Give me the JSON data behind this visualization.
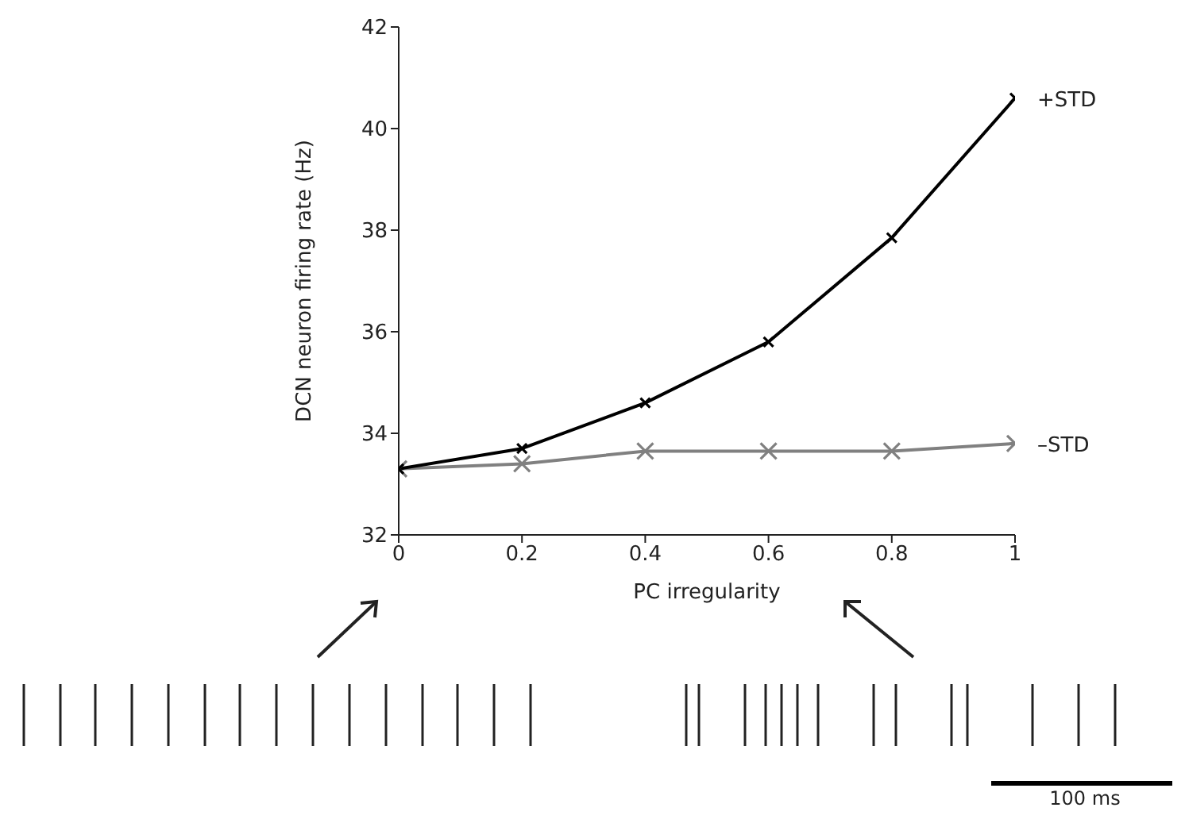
{
  "chart_data": {
    "type": "line",
    "xlabel": "PC irregularity",
    "ylabel": "DCN neuron firing rate (Hz)",
    "x": [
      0,
      0.2,
      0.4,
      0.6,
      0.8,
      1
    ],
    "series": [
      {
        "name": "+STD",
        "color": "#000000",
        "values": [
          33.3,
          33.7,
          34.6,
          35.8,
          37.85,
          40.6
        ]
      },
      {
        "name": "–STD",
        "color": "#808080",
        "values": [
          33.3,
          33.4,
          33.65,
          33.65,
          33.65,
          33.8
        ]
      }
    ],
    "xlim": [
      0,
      1
    ],
    "xticks": [
      0,
      0.2,
      0.4,
      0.6,
      0.8,
      1
    ],
    "ylim": [
      32,
      42
    ],
    "yticks": [
      32,
      34,
      36,
      38,
      40,
      42
    ],
    "marker": "cross",
    "line_style": "solid",
    "annotations": [
      "100 ms"
    ]
  }
}
